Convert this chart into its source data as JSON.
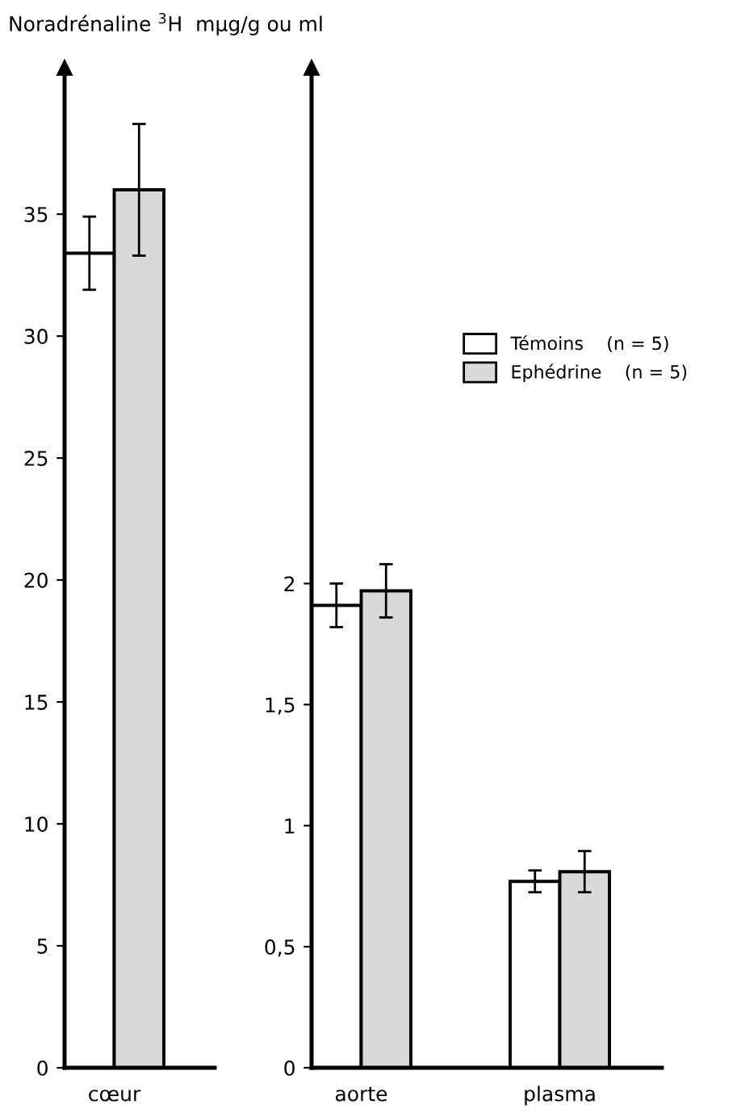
{
  "chart_data": [
    {
      "type": "bar",
      "ylabel": "Noradrénaline $^{3}$H  mμg/g ou ml",
      "categories": [
        "cœur"
      ],
      "ylim": [
        0,
        41
      ],
      "yticks": [
        0,
        5,
        10,
        15,
        20,
        25,
        30,
        35
      ],
      "legend": false,
      "series": [
        {
          "color": "#ffffff",
          "values": [
            33.4
          ],
          "errors": [
            1.5
          ]
        },
        {
          "color": "#d9d9d9",
          "values": [
            36.0
          ],
          "errors": [
            2.7
          ]
        }
      ]
    },
    {
      "type": "bar",
      "categories": [
        "aorte",
        "plasma"
      ],
      "ylim": [
        0,
        4.13
      ],
      "yticks": [
        {
          "value": 0,
          "label": "0"
        },
        {
          "value": 0.5,
          "label": "0,5"
        },
        {
          "value": 1,
          "label": "1"
        },
        {
          "value": 1.5,
          "label": "1,5"
        },
        {
          "value": 2,
          "label": "2"
        }
      ],
      "legend": "top right",
      "series": [
        {
          "name": "Témoins    (n = 5)",
          "color": "#ffffff",
          "values": [
            1.91,
            0.77
          ],
          "errors": [
            0.09,
            0.045
          ]
        },
        {
          "name": "Ephédrine    (n = 5)",
          "color": "#d9d9d9",
          "values": [
            1.97,
            0.81
          ],
          "errors": [
            0.11,
            0.085
          ]
        }
      ]
    }
  ]
}
